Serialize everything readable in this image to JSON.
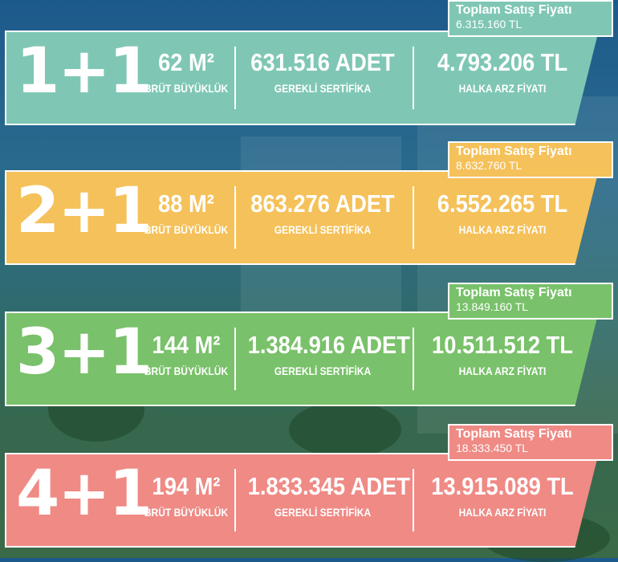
{
  "cards": [
    {
      "room": "1+1",
      "area": "62 M²",
      "area_label": "BRÜT BÜYÜKLÜK",
      "certs": "631.516 ADET",
      "certs_label": "GEREKLİ SERTİFİKA",
      "ipo_price": "4.793.206 TL",
      "ipo_label": "HALKA ARZ FİYATI",
      "total_label": "Toplam Satış Fiyatı",
      "total_value": "6.315.160 TL",
      "color": "#7fc7b4",
      "tag_color": "#7fc7b4"
    },
    {
      "room": "2+1",
      "area": "88 M²",
      "area_label": "BRÜT BÜYÜKLÜK",
      "certs": "863.276 ADET",
      "certs_label": "GEREKLİ SERTİFİKA",
      "ipo_price": "6.552.265 TL",
      "ipo_label": "HALKA ARZ FİYATI",
      "total_label": "Toplam Satış Fiyatı",
      "total_value": "8.632.760 TL",
      "color": "#f5c15a",
      "tag_color": "#f5c15a"
    },
    {
      "room": "3+1",
      "area": "144 M²",
      "area_label": "BRÜT BÜYÜKLÜK",
      "certs": "1.384.916 ADET",
      "certs_label": "GEREKLİ SERTİFİKA",
      "ipo_price": "10.511.512 TL",
      "ipo_label": "HALKA ARZ FİYATI",
      "total_label": "Toplam Satış Fiyatı",
      "total_value": "13.849.160 TL",
      "color": "#79c16a",
      "tag_color": "#79c16a"
    },
    {
      "room": "4+1",
      "area": "194 M²",
      "area_label": "BRÜT BÜYÜKLÜK",
      "certs": "1.833.345 ADET",
      "certs_label": "GEREKLİ SERTİFİKA",
      "ipo_price": "13.915.089 TL",
      "ipo_label": "HALKA ARZ FİYATI",
      "total_label": "Toplam Satış Fiyatı",
      "total_value": "18.333.450 TL",
      "color": "#ef8a85",
      "tag_color": "#ef8a85"
    }
  ]
}
